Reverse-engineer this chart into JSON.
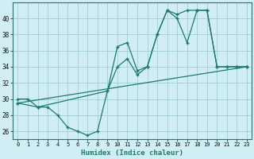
{
  "xlabel": "Humidex (Indice chaleur)",
  "bg_color": "#d2eef5",
  "line_color": "#1a7a6e",
  "grid_color": "#9dcfda",
  "xlim": [
    -0.5,
    23.5
  ],
  "ylim": [
    25,
    42
  ],
  "yticks": [
    26,
    28,
    30,
    32,
    34,
    36,
    38,
    40
  ],
  "xticks": [
    0,
    1,
    2,
    3,
    4,
    5,
    6,
    7,
    8,
    9,
    10,
    11,
    12,
    13,
    14,
    15,
    16,
    17,
    18,
    19,
    20,
    21,
    22,
    23
  ],
  "series1_x": [
    0,
    1,
    2,
    3,
    4,
    5,
    6,
    7,
    8,
    9,
    10,
    11,
    12,
    13,
    14,
    15,
    16,
    17,
    18,
    19,
    20,
    21,
    22,
    23
  ],
  "series1_y": [
    30,
    30,
    29,
    29,
    28,
    26.5,
    26,
    25.5,
    26,
    31,
    36.5,
    37,
    33.5,
    34,
    38,
    41,
    40,
    37,
    41,
    41,
    34,
    34,
    34,
    34
  ],
  "series2_x": [
    0,
    23
  ],
  "series2_y": [
    29.5,
    34
  ],
  "series3_x": [
    0,
    2,
    9,
    10,
    11,
    12,
    13,
    14,
    15,
    16,
    17,
    18,
    19,
    20,
    21,
    22,
    23
  ],
  "series3_y": [
    29.5,
    29,
    31,
    34,
    35,
    33,
    34,
    38,
    41,
    40.5,
    41,
    41,
    41,
    34,
    34,
    34,
    34
  ]
}
